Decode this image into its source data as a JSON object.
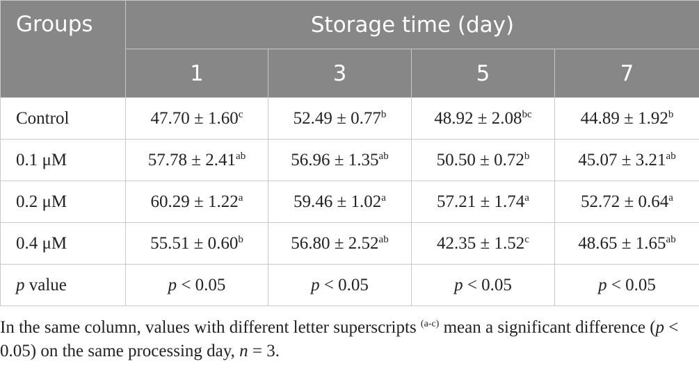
{
  "header": {
    "groups": "Groups",
    "storage": "Storage time (day)",
    "days": [
      "1",
      "3",
      "5",
      "7"
    ]
  },
  "rows": [
    {
      "group": "Control",
      "cells": [
        {
          "value": "47.70 ± 1.60",
          "sup": "c"
        },
        {
          "value": "52.49 ± 0.77",
          "sup": "b"
        },
        {
          "value": "48.92 ± 2.08",
          "sup": "bc"
        },
        {
          "value": "44.89 ± 1.92",
          "sup": "b"
        }
      ]
    },
    {
      "group": "0.1 μM",
      "cells": [
        {
          "value": "57.78 ± 2.41",
          "sup": "ab"
        },
        {
          "value": "56.96 ± 1.35",
          "sup": "ab"
        },
        {
          "value": "50.50 ± 0.72",
          "sup": "b"
        },
        {
          "value": "45.07 ± 3.21",
          "sup": "ab"
        }
      ]
    },
    {
      "group": "0.2 μM",
      "cells": [
        {
          "value": "60.29 ± 1.22",
          "sup": "a"
        },
        {
          "value": "59.46 ± 1.02",
          "sup": "a"
        },
        {
          "value": "57.21 ± 1.74",
          "sup": "a"
        },
        {
          "value": "52.72 ± 0.64",
          "sup": "a"
        }
      ]
    },
    {
      "group": "0.4 μM",
      "cells": [
        {
          "value": "55.51 ± 0.60",
          "sup": "b"
        },
        {
          "value": "56.80 ± 2.52",
          "sup": "ab"
        },
        {
          "value": "42.35 ± 1.52",
          "sup": "c"
        },
        {
          "value": "48.65 ± 1.65",
          "sup": "ab"
        }
      ]
    }
  ],
  "p_row": {
    "italic": "p",
    "rest": "value",
    "cells": [
      {
        "italic": "p",
        "rest": "< 0.05"
      },
      {
        "italic": "p",
        "rest": "< 0.05"
      },
      {
        "italic": "p",
        "rest": "< 0.05"
      },
      {
        "italic": "p",
        "rest": "< 0.05"
      }
    ]
  },
  "footnote": {
    "t1": "In the same column, values with different letter superscripts",
    "sup": "(a-c)",
    "t2": "mean a significant difference (",
    "p": "p",
    "t3": "< 0.05) on the same processing day,",
    "n": "n",
    "t4": "= 3."
  }
}
